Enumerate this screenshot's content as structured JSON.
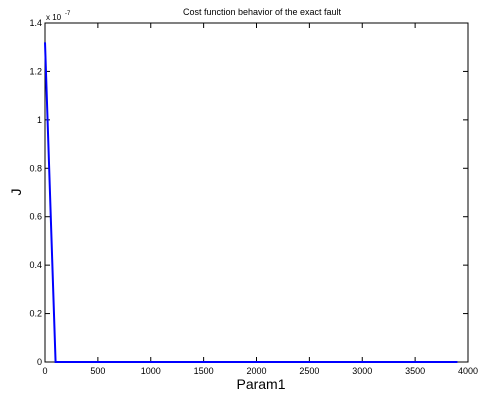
{
  "chart_data": {
    "type": "line",
    "title": "Cost function behavior of the exact fault",
    "xlabel": "Param1",
    "ylabel": "J",
    "y_exponent_label": "x 10",
    "y_exponent_power": "-7",
    "xlim": [
      0,
      4000
    ],
    "ylim": [
      0,
      1.4
    ],
    "x_ticks": [
      0,
      500,
      1000,
      1500,
      2000,
      2500,
      3000,
      3500,
      4000
    ],
    "x_tick_labels": [
      "0",
      "500",
      "1000",
      "1500",
      "2000",
      "2500",
      "3000",
      "3500",
      "4000"
    ],
    "y_ticks": [
      0,
      0.2,
      0.4,
      0.6,
      0.8,
      1,
      1.2,
      1.4
    ],
    "y_tick_labels": [
      "0",
      "0.2",
      "0.4",
      "0.6",
      "0.8",
      "1",
      "1.2",
      "1.4"
    ],
    "grid": false,
    "series": [
      {
        "color": "#0000ff",
        "x": [
          0,
          100,
          200,
          400,
          800,
          1200,
          1600,
          2000,
          2400,
          2800,
          3200,
          3600,
          3900
        ],
        "y": [
          1.32,
          0,
          0,
          0,
          0,
          0,
          0,
          0,
          0,
          0,
          0,
          0,
          0
        ]
      }
    ]
  }
}
